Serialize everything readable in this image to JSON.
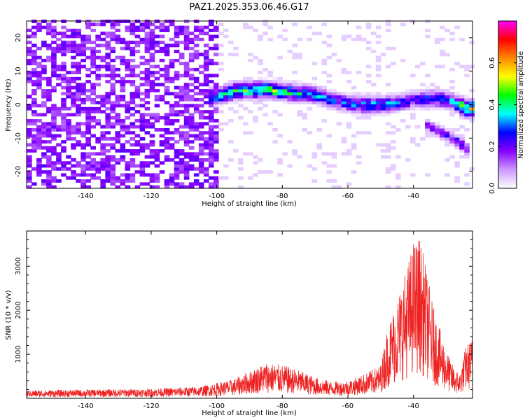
{
  "title": "PAZ1.2025.353.06.46.G17",
  "chart_data": [
    {
      "type": "heatmap",
      "name": "spectrogram",
      "xlabel": "Height of straight line (km)",
      "ylabel": "Frequency (Hz)",
      "xlim": [
        -158,
        -22
      ],
      "ylim": [
        -25,
        25
      ],
      "xticks": [
        -140,
        -120,
        -100,
        -80,
        -60,
        -40
      ],
      "yticks": [
        -20,
        -10,
        0,
        10,
        20
      ],
      "colorbar": {
        "label": "Normalized spectral amplitude",
        "range": [
          0.0,
          0.8
        ],
        "ticks": [
          0.0,
          0.2,
          0.4,
          0.6
        ],
        "colors": [
          "#ffffff",
          "#cc99ff",
          "#8800ff",
          "#0000ff",
          "#00ffff",
          "#00ff00",
          "#ffff00",
          "#ff8800",
          "#ff0000",
          "#ff00ff"
        ]
      },
      "ridge": {
        "x": [
          -100,
          -95,
          -90,
          -85,
          -80,
          -75,
          -70,
          -65,
          -60,
          -55,
          -50,
          -45,
          -40,
          -35,
          -30,
          -27,
          -24
        ],
        "y": [
          2.5,
          4,
          4.5,
          4.5,
          4,
          3.5,
          3,
          1.5,
          0.5,
          0,
          0,
          0.5,
          1.5,
          2,
          1.5,
          0.5,
          -1
        ],
        "peak_amplitude": [
          0.35,
          0.45,
          0.5,
          0.5,
          0.45,
          0.4,
          0.35,
          0.3,
          0.3,
          0.35,
          0.35,
          0.3,
          0.25,
          0.3,
          0.3,
          0.4,
          0.55
        ]
      },
      "secondary_branch": {
        "x": [
          -36,
          -32,
          -28,
          -25,
          -23
        ],
        "y": [
          -6,
          -8,
          -10,
          -12,
          -14
        ],
        "peak_amplitude": [
          0.2,
          0.25,
          0.25,
          0.3,
          0.25
        ]
      },
      "background_noise": {
        "x_range": [
          -158,
          -100
        ],
        "y_range": [
          -25,
          25
        ],
        "amplitude": 0.1
      }
    },
    {
      "type": "line",
      "name": "snr",
      "xlabel": "Height of straight line (km)",
      "ylabel": "SNR (10 * v/v)",
      "xlim": [
        -158,
        -22
      ],
      "ylim": [
        0,
        3800
      ],
      "xticks": [
        -140,
        -120,
        -100,
        -80,
        -60,
        -40
      ],
      "yticks": [
        1000,
        2000,
        3000
      ],
      "color": "#ee2222",
      "envelope": {
        "x": [
          -158,
          -140,
          -120,
          -105,
          -100,
          -95,
          -90,
          -85,
          -80,
          -75,
          -70,
          -65,
          -60,
          -55,
          -50,
          -48,
          -45,
          -42,
          -40,
          -38,
          -36,
          -34,
          -32,
          -30,
          -28,
          -26,
          -24,
          -22
        ],
        "y": [
          180,
          200,
          220,
          270,
          350,
          430,
          620,
          820,
          760,
          640,
          480,
          380,
          400,
          550,
          760,
          1600,
          2300,
          3000,
          3600,
          3700,
          2900,
          2100,
          1600,
          1100,
          750,
          550,
          1200,
          1400
        ]
      }
    }
  ]
}
